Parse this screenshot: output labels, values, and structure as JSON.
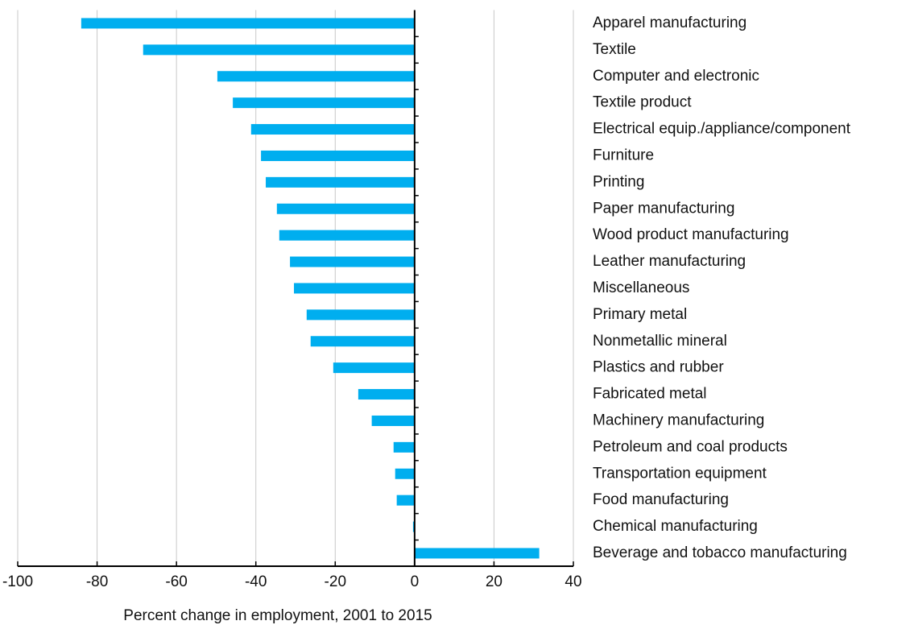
{
  "chart_data": {
    "type": "hbar",
    "x_label": "Percent change in employment, 2001 to 2015",
    "categories": [
      "Apparel manufacturing",
      "Textile",
      "Computer and electronic",
      "Textile product",
      "Electrical equip./appliance/component",
      "Furniture",
      "Printing",
      "Paper manufacturing",
      "Wood product manufacturing",
      "Leather manufacturing",
      "Miscellaneous",
      "Primary metal",
      "Nonmetallic mineral",
      "Plastics and rubber",
      "Fabricated metal",
      "Machinery manufacturing",
      "Petroleum and coal products",
      "Transportation equipment",
      "Food manufacturing",
      "Chemical manufacturing",
      "Beverage and tobacco manufacturing"
    ],
    "values": [
      -84,
      -68.4,
      -49.7,
      -45.8,
      -41.2,
      -38.7,
      -37.5,
      -34.7,
      -34.1,
      -31.4,
      -30.4,
      -27.2,
      -26.2,
      -20.5,
      -14.2,
      -10.8,
      -5.3,
      -4.9,
      -4.5,
      -0.4,
      31.4
    ],
    "color": "#00aeef",
    "xlim": [
      -100,
      40
    ],
    "xticks": [
      -100,
      -80,
      -60,
      -40,
      -20,
      0,
      20,
      40
    ],
    "grid": true
  }
}
